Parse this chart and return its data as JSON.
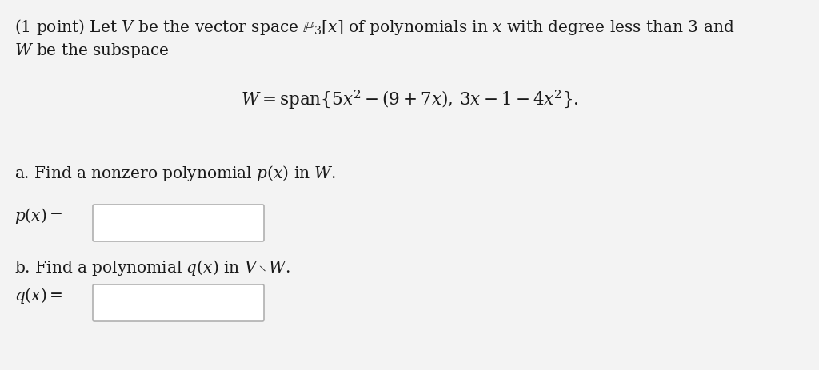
{
  "bg_color": "#f3f3f3",
  "text_color": "#1a1a1a",
  "font_size_body": 14.5,
  "box_color": "#ffffff",
  "box_edge_color": "#b0b0b0",
  "figsize": [
    10.24,
    4.63
  ],
  "dpi": 100
}
